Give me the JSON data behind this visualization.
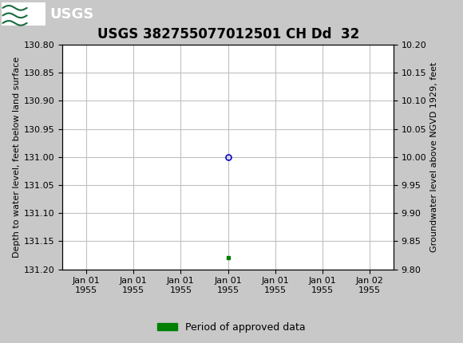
{
  "title": "USGS 382755077012501 CH Dd  32",
  "title_fontsize": 12,
  "header_bg_color": "#1a6b3c",
  "plot_bg_color": "#ffffff",
  "fig_bg_color": "#c8c8c8",
  "grid_color": "#c0c0c0",
  "ylabel_left": "Depth to water level, feet below land surface",
  "ylabel_right": "Groundwater level above NGVD 1929, feet",
  "ylim_left": [
    130.8,
    131.2
  ],
  "ylim_right": [
    9.8,
    10.2
  ],
  "yticks_left": [
    130.8,
    130.85,
    130.9,
    130.95,
    131.0,
    131.05,
    131.1,
    131.15,
    131.2
  ],
  "yticks_right": [
    9.8,
    9.85,
    9.9,
    9.95,
    10.0,
    10.05,
    10.1,
    10.15,
    10.2
  ],
  "data_point_depth": 131.0,
  "data_point_color_open": "#0000cc",
  "data_point_approved_depth": 131.18,
  "data_point_approved_color": "#008000",
  "legend_label": "Period of approved data",
  "legend_color": "#008000",
  "tick_fontsize": 8,
  "label_fontsize": 8
}
